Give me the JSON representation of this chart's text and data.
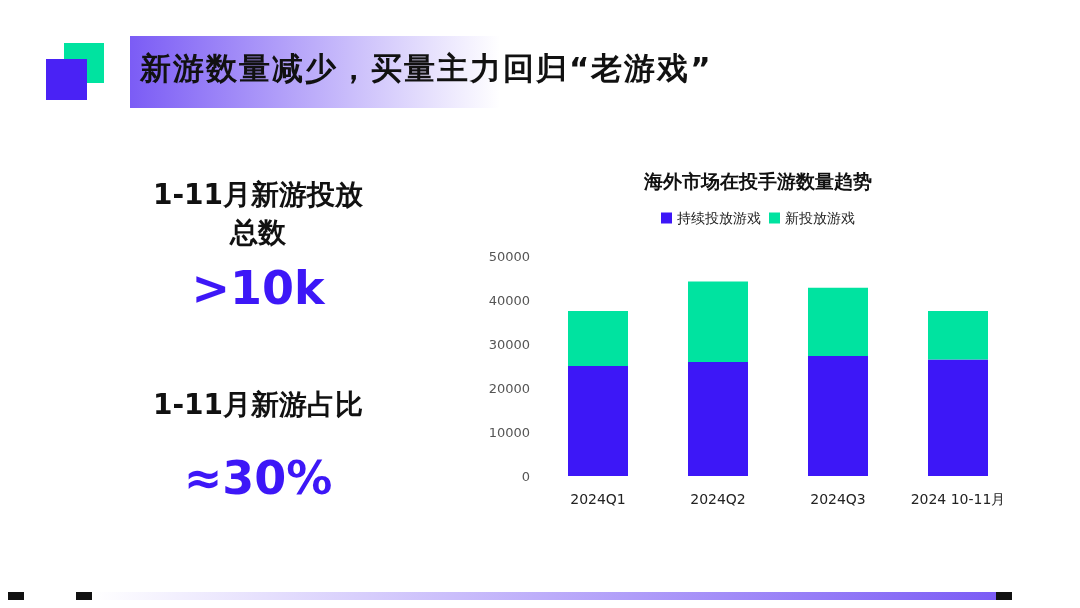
{
  "chart_data": [
    {
      "type": "other",
      "title": "新游数量减少，买量主力回归“老游戏”",
      "annotations": [
        "1-11月新游投放总数",
        ">10k",
        "1-11月新游占比",
        "≈30%"
      ]
    },
    {
      "type": "bar",
      "title": "海外市场在投手游数量趋势",
      "categories": [
        "2024Q1",
        "2024Q2",
        "2024Q3",
        "2024 10-11月"
      ],
      "stacked": true,
      "series": [
        {
          "name": "持续投放游戏",
          "color": "#3d17f7",
          "values": [
            25000,
            25900,
            27300,
            26500
          ]
        },
        {
          "name": "新投放游戏",
          "color": "#00e3a0",
          "values": [
            12500,
            18300,
            15500,
            11000
          ]
        }
      ],
      "ylim": [
        0,
        50000
      ],
      "yticks": [
        0,
        10000,
        20000,
        30000,
        40000,
        50000
      ],
      "grid": false,
      "legend": "top"
    }
  ]
}
